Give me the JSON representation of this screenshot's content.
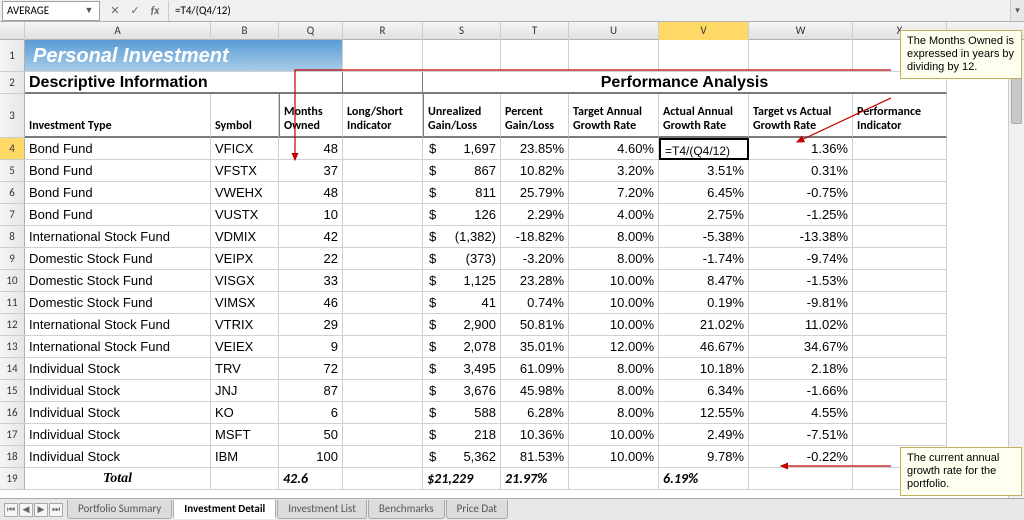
{
  "formula_bar": {
    "name_box": "AVERAGE",
    "cancel": "✕",
    "enter": "✓",
    "fx": "fx",
    "formula": "=T4/(Q4/12)"
  },
  "col_letters": [
    "",
    "A",
    "B",
    "Q",
    "R",
    "S",
    "T",
    "U",
    "V",
    "W",
    "X"
  ],
  "highlight_col_index": 8,
  "title_banner": "Personal Investment",
  "section_left": "Descriptive Information",
  "section_right": "Performance Analysis",
  "headers": {
    "investment_type": "Investment Type",
    "symbol": "Symbol",
    "months_owned": "Months Owned",
    "long_short": "Long/Short Indicator",
    "unrealized": "Unrealized Gain/Loss",
    "percent": "Percent Gain/Loss",
    "target_annual": "Target Annual Growth Rate",
    "actual_annual": "Actual Annual Growth Rate",
    "target_vs_actual": "Target vs Actual Growth Rate",
    "performance": "Performance Indicator"
  },
  "rows": [
    {
      "n": 4,
      "type": "Bond Fund",
      "sym": "VFICX",
      "months": "48",
      "ls": "",
      "gl": "1,697",
      "pct": "23.85%",
      "target": "4.60%",
      "actual": "=T4/(Q4/12)",
      "tva": "1.36%",
      "perf": ""
    },
    {
      "n": 5,
      "type": "Bond Fund",
      "sym": "VFSTX",
      "months": "37",
      "ls": "",
      "gl": "867",
      "pct": "10.82%",
      "target": "3.20%",
      "actual": "3.51%",
      "tva": "0.31%",
      "perf": ""
    },
    {
      "n": 6,
      "type": "Bond Fund",
      "sym": "VWEHX",
      "months": "48",
      "ls": "",
      "gl": "811",
      "pct": "25.79%",
      "target": "7.20%",
      "actual": "6.45%",
      "tva": "-0.75%",
      "perf": ""
    },
    {
      "n": 7,
      "type": "Bond Fund",
      "sym": "VUSTX",
      "months": "10",
      "ls": "",
      "gl": "126",
      "pct": "2.29%",
      "target": "4.00%",
      "actual": "2.75%",
      "tva": "-1.25%",
      "perf": ""
    },
    {
      "n": 8,
      "type": "International Stock Fund",
      "sym": "VDMIX",
      "months": "42",
      "ls": "",
      "gl": "(1,382)",
      "pct": "-18.82%",
      "target": "8.00%",
      "actual": "-5.38%",
      "tva": "-13.38%",
      "perf": ""
    },
    {
      "n": 9,
      "type": "Domestic Stock Fund",
      "sym": "VEIPX",
      "months": "22",
      "ls": "",
      "gl": "(373)",
      "pct": "-3.20%",
      "target": "8.00%",
      "actual": "-1.74%",
      "tva": "-9.74%",
      "perf": ""
    },
    {
      "n": 10,
      "type": "Domestic Stock Fund",
      "sym": "VISGX",
      "months": "33",
      "ls": "",
      "gl": "1,125",
      "pct": "23.28%",
      "target": "10.00%",
      "actual": "8.47%",
      "tva": "-1.53%",
      "perf": ""
    },
    {
      "n": 11,
      "type": "Domestic Stock Fund",
      "sym": "VIMSX",
      "months": "46",
      "ls": "",
      "gl": "41",
      "pct": "0.74%",
      "target": "10.00%",
      "actual": "0.19%",
      "tva": "-9.81%",
      "perf": ""
    },
    {
      "n": 12,
      "type": "International Stock Fund",
      "sym": "VTRIX",
      "months": "29",
      "ls": "",
      "gl": "2,900",
      "pct": "50.81%",
      "target": "10.00%",
      "actual": "21.02%",
      "tva": "11.02%",
      "perf": ""
    },
    {
      "n": 13,
      "type": "International Stock Fund",
      "sym": "VEIEX",
      "months": "9",
      "ls": "",
      "gl": "2,078",
      "pct": "35.01%",
      "target": "12.00%",
      "actual": "46.67%",
      "tva": "34.67%",
      "perf": ""
    },
    {
      "n": 14,
      "type": "Individual Stock",
      "sym": "TRV",
      "months": "72",
      "ls": "",
      "gl": "3,495",
      "pct": "61.09%",
      "target": "8.00%",
      "actual": "10.18%",
      "tva": "2.18%",
      "perf": ""
    },
    {
      "n": 15,
      "type": "Individual Stock",
      "sym": "JNJ",
      "months": "87",
      "ls": "",
      "gl": "3,676",
      "pct": "45.98%",
      "target": "8.00%",
      "actual": "6.34%",
      "tva": "-1.66%",
      "perf": ""
    },
    {
      "n": 16,
      "type": "Individual Stock",
      "sym": "KO",
      "months": "6",
      "ls": "",
      "gl": "588",
      "pct": "6.28%",
      "target": "8.00%",
      "actual": "12.55%",
      "tva": "4.55%",
      "perf": ""
    },
    {
      "n": 17,
      "type": "Individual Stock",
      "sym": "MSFT",
      "months": "50",
      "ls": "",
      "gl": "218",
      "pct": "10.36%",
      "target": "10.00%",
      "actual": "2.49%",
      "tva": "-7.51%",
      "perf": ""
    },
    {
      "n": 18,
      "type": "Individual Stock",
      "sym": "IBM",
      "months": "100",
      "ls": "",
      "gl": "5,362",
      "pct": "81.53%",
      "target": "10.00%",
      "actual": "9.78%",
      "tva": "-0.22%",
      "perf": ""
    }
  ],
  "total": {
    "n": 19,
    "label": "Total",
    "months": "42.6",
    "gl": "$21,229",
    "pct": "21.97%",
    "actual": "6.19%"
  },
  "tabs": [
    "Portfolio Summary",
    "Investment Detail",
    "Investment List",
    "Benchmarks",
    "Price Dat"
  ],
  "active_tab_index": 1,
  "callouts": {
    "c1": "The Months Owned is expressed in years by dividing by 12.",
    "c2": "The current annual growth rate for the portfolio."
  },
  "colors": {
    "banner_top": "#5a9bd4",
    "banner_bottom": "#a8cce8",
    "header_grad_a": "#f5f5f5",
    "header_grad_b": "#e1e1e1",
    "highlight": "#ffd966",
    "grid": "#d0d0d0",
    "callout_bg": "#fffff0",
    "callout_border": "#c0b060",
    "arrow": "#c00000"
  }
}
